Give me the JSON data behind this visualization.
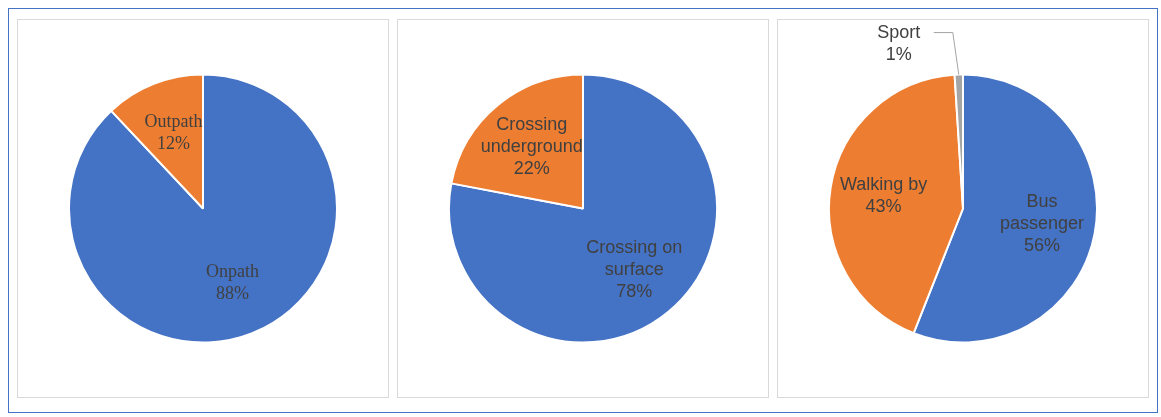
{
  "chart_data": [
    {
      "type": "pie",
      "categories": [
        "Onpath",
        "Outpath"
      ],
      "values": [
        88,
        12
      ],
      "colors": [
        "#4472c4",
        "#ed7d31"
      ],
      "value_labels": [
        "88%",
        "12%"
      ]
    },
    {
      "type": "pie",
      "categories": [
        "Crossing on surface",
        "Crossing underground"
      ],
      "values": [
        78,
        22
      ],
      "colors": [
        "#4472c4",
        "#ed7d31"
      ],
      "value_labels": [
        "78%",
        "22%"
      ]
    },
    {
      "type": "pie",
      "categories": [
        "Bus passenger",
        "Walking by",
        "Sport"
      ],
      "values": [
        56,
        43,
        1
      ],
      "colors": [
        "#4472c4",
        "#ed7d31",
        "#a5a5a5"
      ],
      "value_labels": [
        "56%",
        "43%",
        "1%"
      ]
    }
  ]
}
